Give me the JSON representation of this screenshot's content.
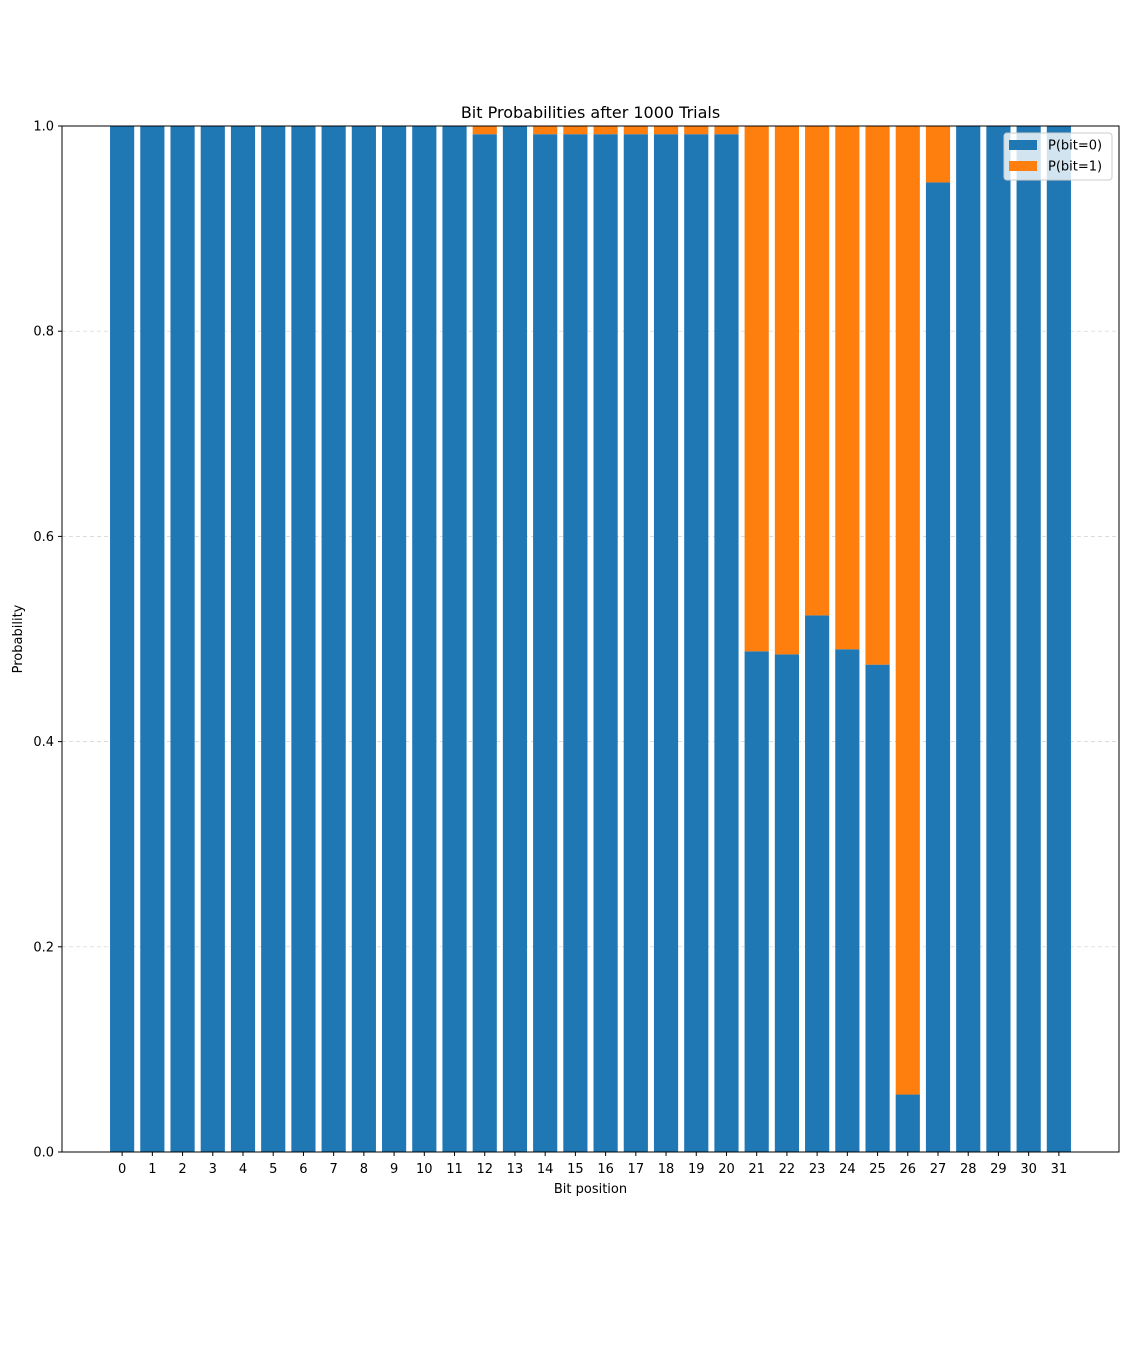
{
  "chart_data": {
    "type": "bar",
    "stacked": true,
    "title": "Bit Probabilities after 1000 Trials",
    "xlabel": "Bit position",
    "ylabel": "Probability",
    "ylim": [
      0,
      1
    ],
    "yticks": [
      "0.0",
      "0.2",
      "0.4",
      "0.6",
      "0.8",
      "1.0"
    ],
    "grid": "horizontal dashed",
    "legend_position": "top-right",
    "categories": [
      "0",
      "1",
      "2",
      "3",
      "4",
      "5",
      "6",
      "7",
      "8",
      "9",
      "10",
      "11",
      "12",
      "13",
      "14",
      "15",
      "16",
      "17",
      "18",
      "19",
      "20",
      "21",
      "22",
      "23",
      "24",
      "25",
      "26",
      "27",
      "28",
      "29",
      "30",
      "31"
    ],
    "series": [
      {
        "name": "P(bit=0)",
        "color": "#1f77b4",
        "values": [
          1.0,
          1.0,
          1.0,
          1.0,
          1.0,
          1.0,
          1.0,
          1.0,
          1.0,
          1.0,
          1.0,
          1.0,
          0.992,
          1.0,
          0.992,
          0.992,
          0.992,
          0.992,
          0.992,
          0.992,
          0.992,
          0.488,
          0.485,
          0.523,
          0.49,
          0.475,
          0.056,
          0.945,
          1.0,
          1.0,
          1.0,
          1.0
        ]
      },
      {
        "name": "P(bit=1)",
        "color": "#ff7f0e",
        "values": [
          0.0,
          0.0,
          0.0,
          0.0,
          0.0,
          0.0,
          0.0,
          0.0,
          0.0,
          0.0,
          0.0,
          0.0,
          0.008,
          0.0,
          0.008,
          0.008,
          0.008,
          0.008,
          0.008,
          0.008,
          0.008,
          0.512,
          0.515,
          0.477,
          0.51,
          0.525,
          0.944,
          0.055,
          0.0,
          0.0,
          0.0,
          0.0
        ]
      }
    ]
  }
}
